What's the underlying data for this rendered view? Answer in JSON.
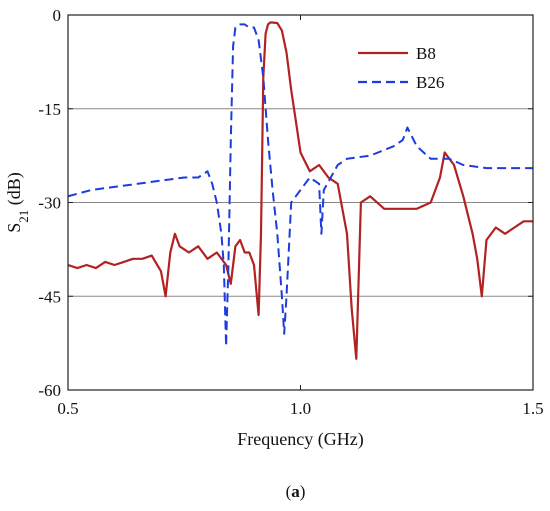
{
  "chart_data": {
    "type": "line",
    "xlabel": "Frequency (GHz)",
    "ylabel_main": "S",
    "ylabel_sub": "21",
    "ylabel_unit": " (dB)",
    "xlim": [
      0.5,
      1.5
    ],
    "ylim": [
      -60,
      0
    ],
    "x_ticks": [
      "0.5",
      "1.0",
      "1.5"
    ],
    "y_ticks": [
      "0",
      "-15",
      "-30",
      "-45",
      "-60"
    ],
    "x_tick_values": [
      0.5,
      1.0,
      1.5
    ],
    "y_tick_values": [
      0,
      -15,
      -30,
      -45,
      -60
    ],
    "grid": "horizontal",
    "legend_position": "top-right",
    "caption": "(a)",
    "series": [
      {
        "name": "B8",
        "color": "#b22222",
        "style": "solid",
        "x": [
          0.5,
          0.52,
          0.54,
          0.56,
          0.58,
          0.6,
          0.62,
          0.64,
          0.66,
          0.68,
          0.7,
          0.71,
          0.72,
          0.73,
          0.74,
          0.76,
          0.78,
          0.8,
          0.82,
          0.84,
          0.85,
          0.86,
          0.87,
          0.88,
          0.89,
          0.9,
          0.91,
          0.915,
          0.92,
          0.925,
          0.93,
          0.935,
          0.94,
          0.95,
          0.96,
          0.97,
          0.98,
          0.99,
          1.0,
          1.02,
          1.04,
          1.06,
          1.08,
          1.1,
          1.11,
          1.12,
          1.13,
          1.15,
          1.18,
          1.2,
          1.22,
          1.25,
          1.28,
          1.3,
          1.31,
          1.33,
          1.35,
          1.37,
          1.38,
          1.39,
          1.4,
          1.42,
          1.44,
          1.46,
          1.48,
          1.5
        ],
        "values": [
          -40,
          -40.5,
          -40,
          -40.5,
          -39.5,
          -40,
          -39.5,
          -39,
          -39,
          -38.5,
          -41,
          -45,
          -38,
          -35,
          -37,
          -38,
          -37,
          -39,
          -38,
          -40,
          -43,
          -37,
          -36,
          -38,
          -38,
          -40,
          -48,
          -35,
          -10,
          -3,
          -1.5,
          -1.2,
          -1.2,
          -1.3,
          -2.5,
          -6,
          -12,
          -17,
          -22,
          -25,
          -24,
          -26,
          -27,
          -35,
          -47,
          -55,
          -30,
          -29,
          -31,
          -31,
          -31,
          -31,
          -30,
          -26,
          -22,
          -24,
          -29,
          -35,
          -39,
          -45,
          -36,
          -34,
          -35,
          -34,
          -33,
          -33
        ]
      },
      {
        "name": "B26",
        "color": "#1e3cdc",
        "style": "dashed",
        "x": [
          0.5,
          0.55,
          0.6,
          0.65,
          0.7,
          0.75,
          0.78,
          0.8,
          0.81,
          0.82,
          0.83,
          0.835,
          0.84,
          0.845,
          0.85,
          0.855,
          0.86,
          0.87,
          0.88,
          0.89,
          0.9,
          0.91,
          0.92,
          0.93,
          0.94,
          0.95,
          0.96,
          0.965,
          0.97,
          0.98,
          1.0,
          1.02,
          1.04,
          1.045,
          1.05,
          1.08,
          1.1,
          1.15,
          1.2,
          1.22,
          1.23,
          1.25,
          1.28,
          1.3,
          1.32,
          1.35,
          1.4,
          1.45,
          1.5
        ],
        "values": [
          -29,
          -28,
          -27.5,
          -27,
          -26.5,
          -26,
          -26,
          -25,
          -27,
          -30,
          -35,
          -40,
          -53,
          -40,
          -20,
          -5,
          -2,
          -1.5,
          -1.5,
          -2,
          -2,
          -4,
          -10,
          -20,
          -28,
          -35,
          -45,
          -51,
          -45,
          -30,
          -28,
          -26,
          -27,
          -35,
          -28,
          -24,
          -23,
          -22.5,
          -21,
          -20,
          -18,
          -21,
          -23,
          -23,
          -23,
          -24,
          -24.5,
          -24.5,
          -24.5
        ]
      }
    ]
  }
}
